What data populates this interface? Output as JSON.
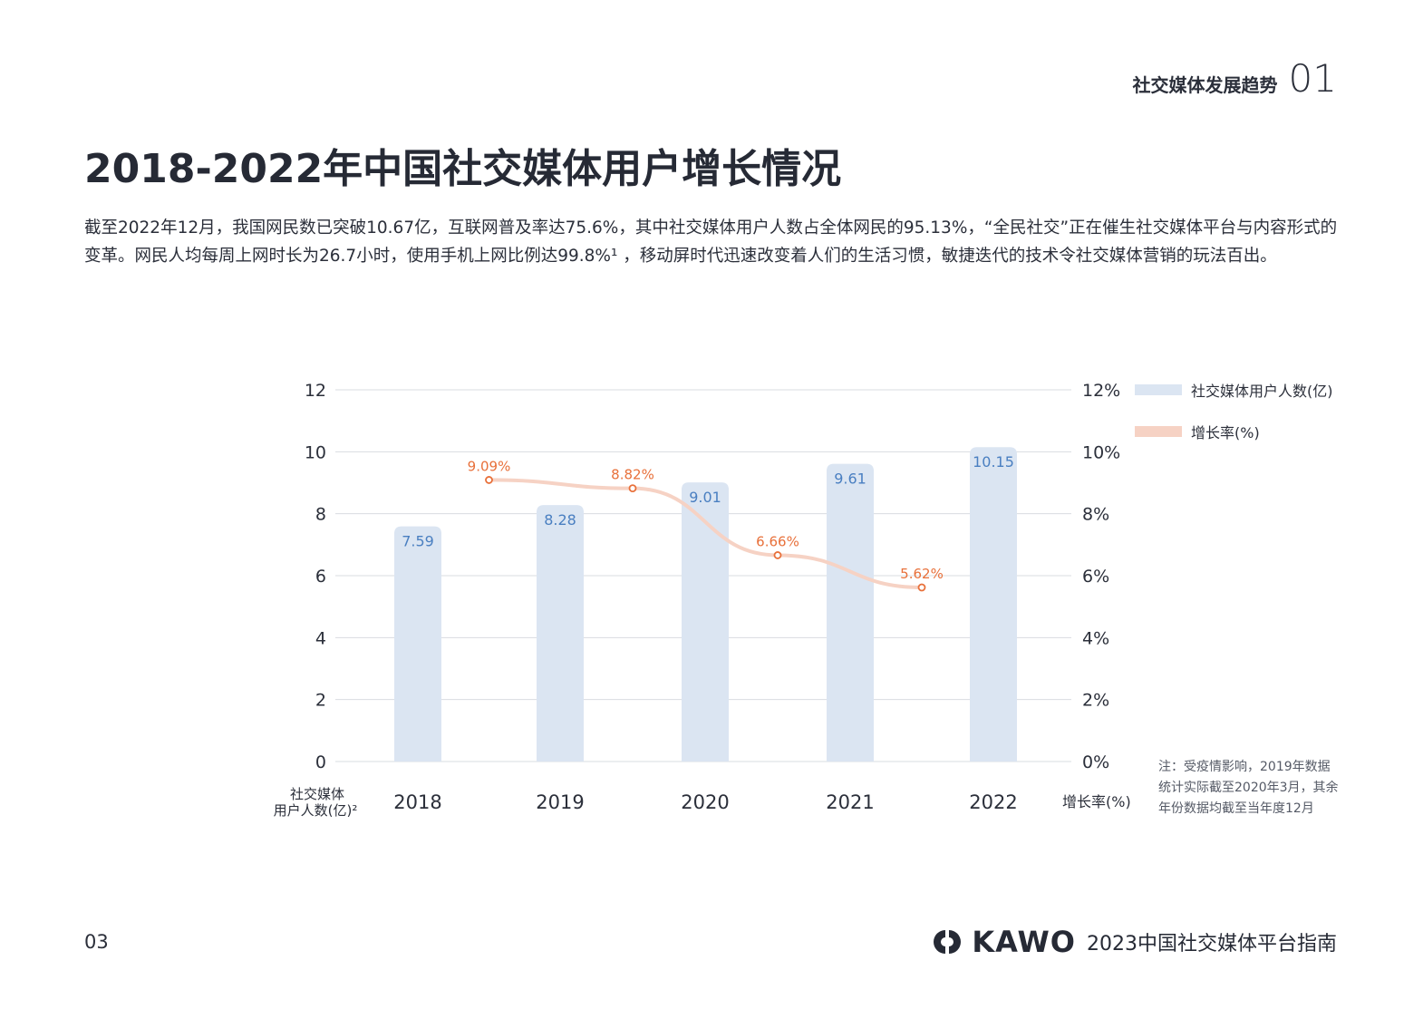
{
  "header": {
    "section_label": "社交媒体发展趋势",
    "section_number": "01"
  },
  "title": "2018-2022年中国社交媒体用户增长情况",
  "paragraph": "截至2022年12月，我国网民数已突破10.67亿，互联网普及率达75.6%，其中社交媒体用户人数占全体网民的95.13%，“全民社交”正在催生社交媒体平台与内容形式的变革。网民人均每周上网时长为26.7小时，使用手机上网比例达99.8%¹ ，移动屏时代迅速改变着人们的生活习惯，敏捷迭代的技术令社交媒体营销的玩法百出。",
  "note": "注：受疫情影响，2019年数据统计实际截至2020年3月，其余年份数据均截至当年度12月",
  "footer": {
    "page_number": "03",
    "brand": "KAWO",
    "publication": "2023中国社交媒体平台指南"
  },
  "colors": {
    "bar": "#dbe5f2",
    "bar_label": "#4a7fc1",
    "line": "#f6d2c4",
    "point": "#e8703a",
    "grid": "#d9dce1"
  },
  "chart_data": {
    "type": "bar",
    "categories": [
      "2018",
      "2019",
      "2020",
      "2021",
      "2022"
    ],
    "series": [
      {
        "name": "社交媒体用户人数(亿)",
        "type": "bar",
        "axis": "left",
        "values": [
          7.59,
          8.28,
          9.01,
          9.61,
          10.15
        ],
        "labels": [
          "7.59",
          "8.28",
          "9.01",
          "9.61",
          "10.15"
        ]
      },
      {
        "name": "增长率(%)",
        "type": "line",
        "axis": "right",
        "values": [
          9.09,
          8.82,
          6.66,
          5.62
        ],
        "labels": [
          "9.09%",
          "8.82%",
          "6.66%",
          "5.62%"
        ],
        "positions": [
          2018.5,
          2019.5,
          2020.5,
          2021.5
        ]
      }
    ],
    "ylabel": "社交媒体用户人数(亿)²",
    "ylabel_lines": [
      "社交媒体",
      "用户人数(亿)²"
    ],
    "y2label": "增长率(%)",
    "ylim": [
      0,
      12
    ],
    "y2lim": [
      0,
      12
    ],
    "yticks": [
      "0",
      "2",
      "4",
      "6",
      "8",
      "10",
      "12"
    ],
    "y2ticks": [
      "0%",
      "2%",
      "4%",
      "6%",
      "8%",
      "10%",
      "12%"
    ],
    "grid": true,
    "legend_position": "top-right"
  }
}
